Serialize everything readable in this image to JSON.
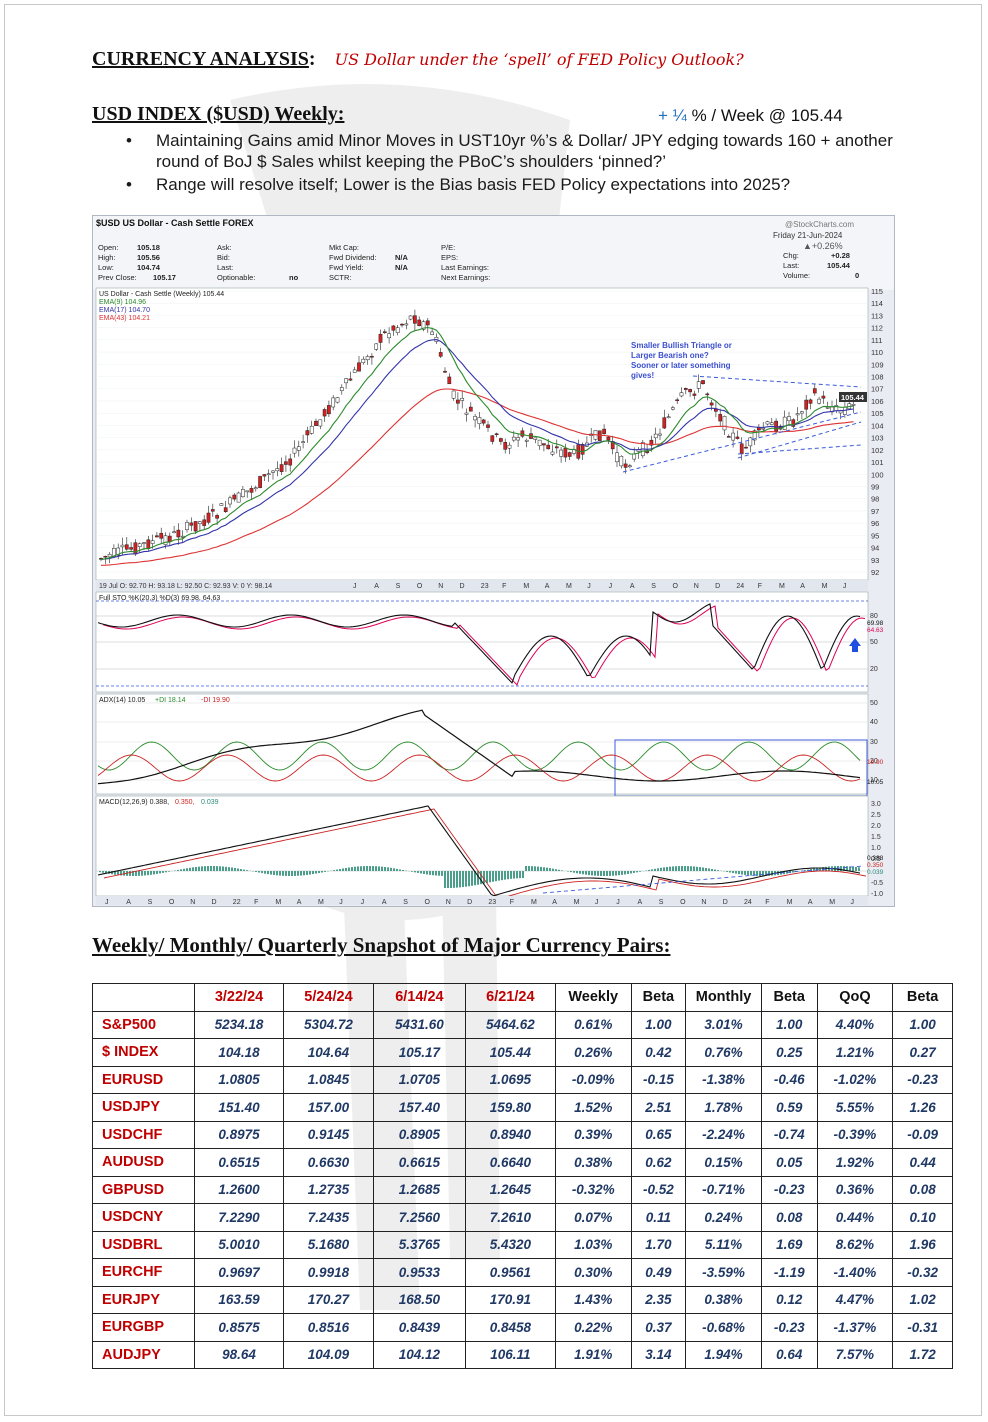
{
  "header": {
    "title": "CURRENCY ANALYSIS",
    "title_sep": ":",
    "subtitle": "US Dollar under the ‘spell’ of FED Policy Outlook?"
  },
  "usd_section": {
    "title": "USD INDEX ($USD) Weekly:",
    "week_change_up": "+ ¼",
    "week_change_rest": " % / Week @ 105.44",
    "bullets": [
      "Maintaining Gains amid Minor Moves in UST10yr %’s & Dollar/ JPY edging towards 160 + another round of BoJ $ Sales whilst keeping the PBoC’s shoulders ‘pinned?’",
      "Range will resolve itself; Lower is the Bias basis FED Policy expectations into 2025?"
    ]
  },
  "chart": {
    "symbol_title": "$USD US Dollar - Cash Settle FOREX",
    "source": "@StockCharts.com",
    "date_line": "Friday  21-Jun-2024",
    "change_pct": "▲+0.26%",
    "quote_rows": [
      {
        "k1": "Open:",
        "v1": "105.18",
        "k2": "Ask:",
        "k3": "Mkt Cap:",
        "k4": "P/E:",
        "k5": "Chg:",
        "v5": "+0.28"
      },
      {
        "k1": "High:",
        "v1": "105.56",
        "k2": "Bid:",
        "k3": "Fwd Dividend:",
        "v3": "N/A",
        "k4": "EPS:",
        "k5": "Last:",
        "v5": "105.44"
      },
      {
        "k1": "Low:",
        "v1": "104.74",
        "k2": "Last:",
        "k3": "Fwd Yield:",
        "v3": "N/A",
        "k4": "Last Earnings:",
        "k5": "Volume:",
        "v5": "0"
      },
      {
        "k1": "Prev Close:",
        "v1": "105.17",
        "k2": "Optionable:",
        "v2": "no",
        "k3": "SCTR:",
        "k4": "Next Earnings:"
      }
    ],
    "legend": [
      "US Dollar - Cash Settle (Weekly) 105.44",
      "EMA(9) 104.96",
      "EMA(17) 104.70",
      "EMA(43) 104.21"
    ],
    "annotation": [
      "Smaller Bullish Triangle or",
      "Larger Bearish one?",
      "Sooner or later something",
      "gives!"
    ],
    "price_ticks": [
      "115",
      "114",
      "113",
      "112",
      "111",
      "110",
      "109",
      "108",
      "107",
      "106",
      "105",
      "104",
      "103",
      "102",
      "101",
      "100",
      "99",
      "98",
      "97",
      "96",
      "95",
      "94",
      "93",
      "92"
    ],
    "last_price_label": "105.44",
    "mid_axis_label": "19 Jul O: 92.70  H: 93.18  L: 92.50  C: 92.93  V: 0  Y: 98.14",
    "month_labels_top": [
      "J",
      "A",
      "S",
      "O",
      "N",
      "D",
      "23",
      "F",
      "M",
      "A",
      "M",
      "J",
      "J",
      "A",
      "S",
      "O",
      "N",
      "D",
      "24",
      "F",
      "M",
      "A",
      "M",
      "J"
    ],
    "month_labels_bottom": [
      "J",
      "A",
      "S",
      "O",
      "N",
      "D",
      "22",
      "F",
      "M",
      "A",
      "M",
      "J",
      "J",
      "A",
      "S",
      "O",
      "N",
      "D",
      "23",
      "F",
      "M",
      "A",
      "M",
      "J",
      "J",
      "A",
      "S",
      "O",
      "N",
      "D",
      "24",
      "F",
      "M",
      "A",
      "M",
      "J"
    ],
    "sto_label": "Full STO %K(20,3) %D(3) 69.98, 64.63",
    "sto_ticks": [
      "80",
      "50",
      "20"
    ],
    "sto_values": [
      "69.98",
      "64.63"
    ],
    "adx_label_1": "ADX(14) 10.05",
    "adx_label_2": "+DI 18.14",
    "adx_label_3": "-DI 19.90",
    "adx_ticks": [
      "50",
      "40",
      "30",
      "20",
      "10"
    ],
    "adx_values": [
      "19.90",
      "10.05"
    ],
    "macd_label_1": "MACD(12,26,9) 0.388,",
    "macd_label_2": "0.350,",
    "macd_label_3": "0.039",
    "macd_ticks": [
      "3.0",
      "2.5",
      "2.0",
      "1.5",
      "1.0",
      "0.5",
      "-0.5",
      "-1.0"
    ],
    "macd_values": [
      "0.388",
      "0.350",
      "0.039"
    ]
  },
  "snapshot": {
    "title": "Weekly/ Monthly/ Quarterly Snapshot of Major Currency Pairs:",
    "columns": [
      "",
      "3/22/24",
      "5/24/24",
      "6/14/24",
      "6/21/24",
      "Weekly",
      "Beta",
      "Monthly",
      "Beta",
      "QoQ",
      "Beta"
    ],
    "rows": [
      [
        "S&P500",
        "5234.18",
        "5304.72",
        "5431.60",
        "5464.62",
        "0.61%",
        "1.00",
        "3.01%",
        "1.00",
        "4.40%",
        "1.00"
      ],
      [
        "$ INDEX",
        "104.18",
        "104.64",
        "105.17",
        "105.44",
        "0.26%",
        "0.42",
        "0.76%",
        "0.25",
        "1.21%",
        "0.27"
      ],
      [
        "EURUSD",
        "1.0805",
        "1.0845",
        "1.0705",
        "1.0695",
        "-0.09%",
        "-0.15",
        "-1.38%",
        "-0.46",
        "-1.02%",
        "-0.23"
      ],
      [
        "USDJPY",
        "151.40",
        "157.00",
        "157.40",
        "159.80",
        "1.52%",
        "2.51",
        "1.78%",
        "0.59",
        "5.55%",
        "1.26"
      ],
      [
        "USDCHF",
        "0.8975",
        "0.9145",
        "0.8905",
        "0.8940",
        "0.39%",
        "0.65",
        "-2.24%",
        "-0.74",
        "-0.39%",
        "-0.09"
      ],
      [
        "AUDUSD",
        "0.6515",
        "0.6630",
        "0.6615",
        "0.6640",
        "0.38%",
        "0.62",
        "0.15%",
        "0.05",
        "1.92%",
        "0.44"
      ],
      [
        "GBPUSD",
        "1.2600",
        "1.2735",
        "1.2685",
        "1.2645",
        "-0.32%",
        "-0.52",
        "-0.71%",
        "-0.23",
        "0.36%",
        "0.08"
      ],
      [
        "USDCNY",
        "7.2290",
        "7.2435",
        "7.2560",
        "7.2610",
        "0.07%",
        "0.11",
        "0.24%",
        "0.08",
        "0.44%",
        "0.10"
      ],
      [
        "USDBRL",
        "5.0010",
        "5.1680",
        "5.3765",
        "5.4320",
        "1.03%",
        "1.70",
        "5.11%",
        "1.69",
        "8.62%",
        "1.96"
      ],
      [
        "EURCHF",
        "0.9697",
        "0.9918",
        "0.9533",
        "0.9561",
        "0.30%",
        "0.49",
        "-3.59%",
        "-1.19",
        "-1.40%",
        "-0.32"
      ],
      [
        "EURJPY",
        "163.59",
        "170.27",
        "168.50",
        "170.91",
        "1.43%",
        "2.35",
        "0.38%",
        "0.12",
        "4.47%",
        "1.02"
      ],
      [
        "EURGBP",
        "0.8575",
        "0.8516",
        "0.8439",
        "0.8458",
        "0.22%",
        "0.37",
        "-0.68%",
        "-0.23",
        "-1.37%",
        "-0.31"
      ],
      [
        "AUDJPY",
        "98.64",
        "104.09",
        "104.12",
        "106.11",
        "1.91%",
        "3.14",
        "1.94%",
        "0.64",
        "7.57%",
        "1.72"
      ]
    ]
  }
}
